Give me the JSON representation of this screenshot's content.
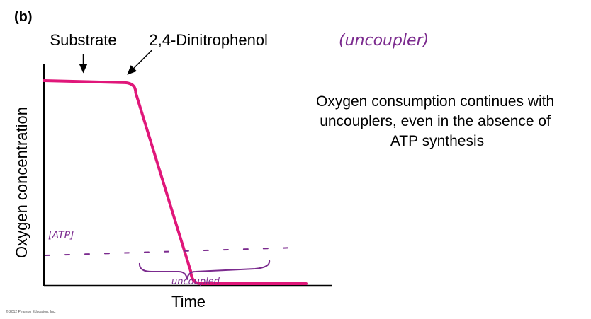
{
  "panel_label": "(b)",
  "annotation_text": "Oxygen consumption continues with uncouplers, even in the absence of ATP synthesis",
  "handwritten": {
    "uncoupler_note": "(uncoupler)",
    "atp_label": "[ATP]",
    "uncoupled_label": "uncoupled"
  },
  "copyright": "© 2012 Pearson Education, Inc.",
  "colors": {
    "curve": "#e0177a",
    "ink": "#7b2a8e",
    "axis": "#000000"
  },
  "chart_data": {
    "type": "line",
    "xlabel": "Time",
    "ylabel": "Oxygen concentration",
    "xlim": [
      0,
      100
    ],
    "ylim": [
      0,
      100
    ],
    "grid": false,
    "series": [
      {
        "x": [
          0,
          31,
          35,
          56,
          60,
          100
        ],
        "y": [
          100,
          99,
          94,
          6,
          0,
          0
        ]
      }
    ],
    "arrows": [
      {
        "label": "Substrate",
        "x": 15,
        "y": 100
      },
      {
        "label": "2,4-Dinitrophenol",
        "x": 32,
        "y": 99
      }
    ]
  }
}
